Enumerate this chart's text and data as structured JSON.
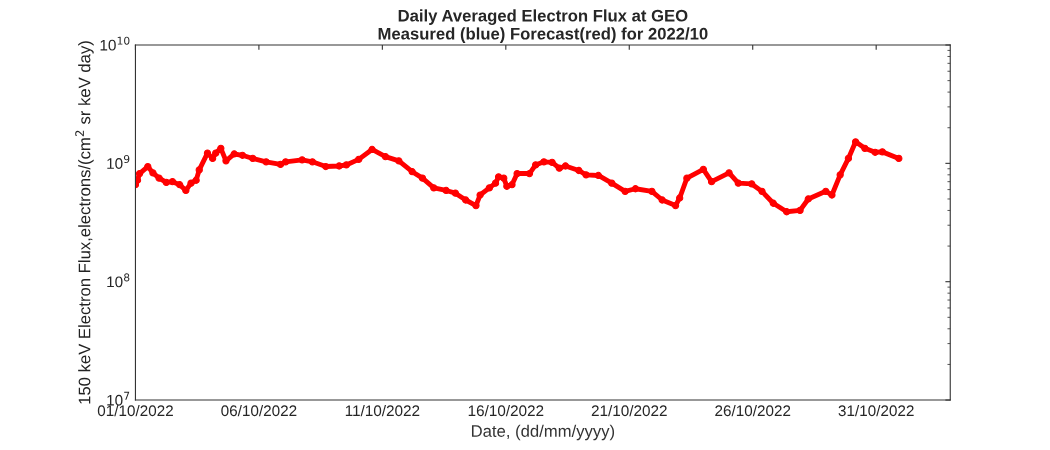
{
  "chart_data": {
    "type": "line",
    "title": "Daily Averaged Electron Flux at GEO",
    "subtitle": "Measured (blue) Forecast(red) for 2022/10",
    "xlabel": "Date, (dd/mm/yyyy)",
    "ylabel": "150 keV Electron Flux,electrons/(cm$^{2}$ sr keV day)",
    "log": "y",
    "grid": false,
    "marker": "circle",
    "line_style": "solid",
    "xlim": [
      "2022-10-01",
      "2022-11-03"
    ],
    "xticks": [
      {
        "value": "2022-10-01",
        "label": "01/10/2022"
      },
      {
        "value": "2022-10-06",
        "label": "06/10/2022"
      },
      {
        "value": "2022-10-11",
        "label": "11/10/2022"
      },
      {
        "value": "2022-10-16",
        "label": "16/10/2022"
      },
      {
        "value": "2022-10-21",
        "label": "21/10/2022"
      },
      {
        "value": "2022-10-26",
        "label": "26/10/2022"
      },
      {
        "value": "2022-10-31",
        "label": "31/10/2022"
      }
    ],
    "ylim": [
      10000000,
      10000000000
    ],
    "yticks": [
      {
        "value": 10000000,
        "label": "10$^{7}$"
      },
      {
        "value": 100000000,
        "label": "10$^{8}$"
      },
      {
        "value": 1000000000,
        "label": "10$^{9}$"
      },
      {
        "value": 10000000000,
        "label": "10$^{10}$"
      }
    ],
    "x": [
      "2022-10-01T00:00",
      "2022-10-01T02:00",
      "2022-10-01T04:00",
      "2022-10-01T12:00",
      "2022-10-01T17:00",
      "2022-10-01T23:00",
      "2022-10-02T06:00",
      "2022-10-02T12:00",
      "2022-10-02T19:00",
      "2022-10-03T01:00",
      "2022-10-03T06:00",
      "2022-10-03T11:00",
      "2022-10-03T14:00",
      "2022-10-03T22:00",
      "2022-10-04T03:00",
      "2022-10-04T06:00",
      "2022-10-04T11:00",
      "2022-10-04T16:00",
      "2022-10-05T00:00",
      "2022-10-05T08:00",
      "2022-10-05T18:00",
      "2022-10-06T07:00",
      "2022-10-06T21:00",
      "2022-10-07T02:00",
      "2022-10-07T18:00",
      "2022-10-08T04:00",
      "2022-10-08T17:00",
      "2022-10-09T06:00",
      "2022-10-09T13:00",
      "2022-10-10T01:00",
      "2022-10-10T14:00",
      "2022-10-11T03:00",
      "2022-10-11T16:00",
      "2022-10-12T05:00",
      "2022-10-12T15:00",
      "2022-10-13T02:00",
      "2022-10-13T14:00",
      "2022-10-13T23:00",
      "2022-10-14T09:00",
      "2022-10-14T19:00",
      "2022-10-14T23:00",
      "2022-10-15T08:00",
      "2022-10-15T14:00",
      "2022-10-15T17:00",
      "2022-10-15T22:00",
      "2022-10-16T01:00",
      "2022-10-16T06:00",
      "2022-10-16T11:00",
      "2022-10-16T23:00",
      "2022-10-17T05:00",
      "2022-10-17T13:00",
      "2022-10-17T21:00",
      "2022-10-18T04:00",
      "2022-10-18T10:00",
      "2022-10-18T23:00",
      "2022-10-19T06:00",
      "2022-10-19T18:00",
      "2022-10-20T07:00",
      "2022-10-20T20:00",
      "2022-10-21T06:00",
      "2022-10-21T22:00",
      "2022-10-22T08:00",
      "2022-10-22T21:00",
      "2022-10-23T01:00",
      "2022-10-23T08:00",
      "2022-10-24T00:00",
      "2022-10-24T08:00",
      "2022-10-25T01:00",
      "2022-10-25T10:00",
      "2022-10-25T23:00",
      "2022-10-26T09:00",
      "2022-10-26T20:00",
      "2022-10-27T09:00",
      "2022-10-27T22:00",
      "2022-10-28T06:00",
      "2022-10-28T23:00",
      "2022-10-29T05:00",
      "2022-10-29T13:00",
      "2022-10-29T21:00",
      "2022-10-30T04:00",
      "2022-10-30T13:00",
      "2022-10-30T23:00",
      "2022-10-31T06:00",
      "2022-10-31T22:00"
    ],
    "series": [
      {
        "color": "#ff0000",
        "values": [
          660000000.0,
          720000000.0,
          820000000.0,
          940000000.0,
          830000000.0,
          750000000.0,
          690000000.0,
          700000000.0,
          660000000.0,
          590000000.0,
          680000000.0,
          720000000.0,
          880000000.0,
          1220000000.0,
          1100000000.0,
          1220000000.0,
          1340000000.0,
          1050000000.0,
          1200000000.0,
          1170000000.0,
          1100000000.0,
          1030000000.0,
          980000000.0,
          1030000000.0,
          1070000000.0,
          1030000000.0,
          940000000.0,
          950000000.0,
          970000000.0,
          1080000000.0,
          1310000000.0,
          1140000000.0,
          1050000000.0,
          850000000.0,
          750000000.0,
          620000000.0,
          590000000.0,
          560000000.0,
          490000000.0,
          440000000.0,
          540000000.0,
          620000000.0,
          680000000.0,
          770000000.0,
          750000000.0,
          640000000.0,
          660000000.0,
          820000000.0,
          820000000.0,
          970000000.0,
          1030000000.0,
          1020000000.0,
          910000000.0,
          950000000.0,
          870000000.0,
          800000000.0,
          790000000.0,
          680000000.0,
          580000000.0,
          610000000.0,
          580000000.0,
          490000000.0,
          440000000.0,
          510000000.0,
          750000000.0,
          890000000.0,
          700000000.0,
          830000000.0,
          680000000.0,
          670000000.0,
          580000000.0,
          460000000.0,
          390000000.0,
          400000000.0,
          500000000.0,
          580000000.0,
          540000000.0,
          800000000.0,
          1100000000.0,
          1520000000.0,
          1340000000.0,
          1240000000.0,
          1250000000.0,
          1100000000.0
        ]
      }
    ]
  }
}
